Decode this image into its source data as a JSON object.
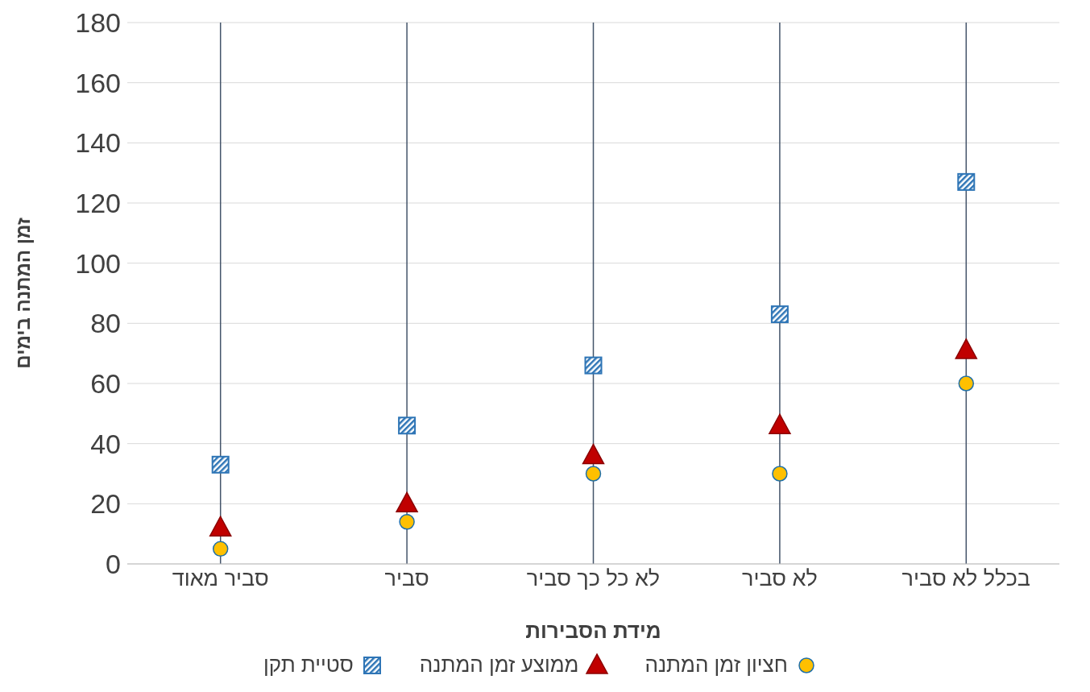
{
  "chart_data": {
    "type": "scatter",
    "xlabel": "מידת הסבירות",
    "ylabel": "זמן המתנה בימים",
    "categories": [
      "סביר מאוד",
      "סביר",
      "לא כל כך סביר",
      "לא סביר",
      "בכלל  לא סביר"
    ],
    "series": [
      {
        "name": "חציון זמן המתנה",
        "color": "#ffc000",
        "marker": "circle",
        "values": [
          5,
          14,
          30,
          30,
          60
        ]
      },
      {
        "name": "ממוצע זמן המתנה",
        "color": "#c00000",
        "marker": "triangle",
        "values": [
          12,
          20,
          36,
          46,
          71
        ]
      },
      {
        "name": "סטיית תקן",
        "color": "#2e75b6",
        "marker": "square",
        "values": [
          33,
          46,
          66,
          83,
          127
        ]
      }
    ],
    "ylim": [
      0,
      180
    ],
    "yticks": [
      0,
      20,
      40,
      60,
      80,
      100,
      120,
      140,
      160,
      180
    ],
    "grid": "y",
    "legend": "bottom",
    "ref_lines": [
      {
        "axis": "x",
        "value": "סביר מאוד",
        "color": "#44546a"
      },
      {
        "axis": "x",
        "value": "סביר",
        "color": "#44546a"
      },
      {
        "axis": "x",
        "value": "לא כל כך סביר",
        "color": "#44546a"
      },
      {
        "axis": "x",
        "value": "לא סביר",
        "color": "#44546a"
      },
      {
        "axis": "x",
        "value": "בכלל  לא סביר",
        "color": "#44546a"
      }
    ]
  }
}
